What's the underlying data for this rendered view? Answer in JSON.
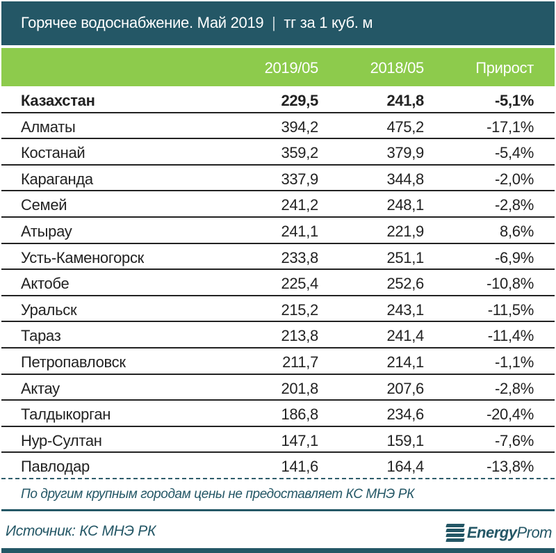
{
  "header": {
    "title": "Горячее водоснабжение. Май 2019",
    "separator": "|",
    "unit": "тг за 1 куб. м"
  },
  "columns": [
    "",
    "2019/05",
    "2018/05",
    "Прирост"
  ],
  "rows": [
    {
      "name": "Казахстан",
      "v2019": "229,5",
      "v2018": "241,8",
      "growth": "-5,1%",
      "bold": true
    },
    {
      "name": "Алматы",
      "v2019": "394,2",
      "v2018": "475,2",
      "growth": "-17,1%"
    },
    {
      "name": "Костанай",
      "v2019": "359,2",
      "v2018": "379,9",
      "growth": "-5,4%"
    },
    {
      "name": "Караганда",
      "v2019": "337,9",
      "v2018": "344,8",
      "growth": "-2,0%"
    },
    {
      "name": "Семей",
      "v2019": "241,2",
      "v2018": "248,1",
      "growth": "-2,8%"
    },
    {
      "name": "Атырау",
      "v2019": "241,1",
      "v2018": "221,9",
      "growth": "8,6%"
    },
    {
      "name": "Усть-Каменогорск",
      "v2019": "233,8",
      "v2018": "251,1",
      "growth": "-6,9%"
    },
    {
      "name": "Актобе",
      "v2019": "225,4",
      "v2018": "252,6",
      "growth": "-10,8%"
    },
    {
      "name": "Уральск",
      "v2019": "215,2",
      "v2018": "243,1",
      "growth": "-11,5%"
    },
    {
      "name": "Тараз",
      "v2019": "213,8",
      "v2018": "241,4",
      "growth": "-11,4%"
    },
    {
      "name": "Петропавловск",
      "v2019": "211,7",
      "v2018": "214,1",
      "growth": "-1,1%"
    },
    {
      "name": "Актау",
      "v2019": "201,8",
      "v2018": "207,6",
      "growth": "-2,8%"
    },
    {
      "name": "Талдыкорган",
      "v2019": "186,8",
      "v2018": "234,6",
      "growth": "-20,4%"
    },
    {
      "name": "Нур-Султан",
      "v2019": "147,1",
      "v2018": "159,1",
      "growth": "-7,6%"
    },
    {
      "name": "Павлодар",
      "v2019": "141,6",
      "v2018": "164,4",
      "growth": "-13,8%"
    }
  ],
  "footer": {
    "note": "По другим крупным городам цены не предоставляет КС МНЭ РК",
    "source": "Источник: КС МНЭ РК",
    "logo_bold": "Energy",
    "logo_light": "Prom"
  },
  "colors": {
    "title_bg": "#245766",
    "header_bg": "#8dcb4c",
    "text": "#222222",
    "accent_text": "#245766"
  }
}
